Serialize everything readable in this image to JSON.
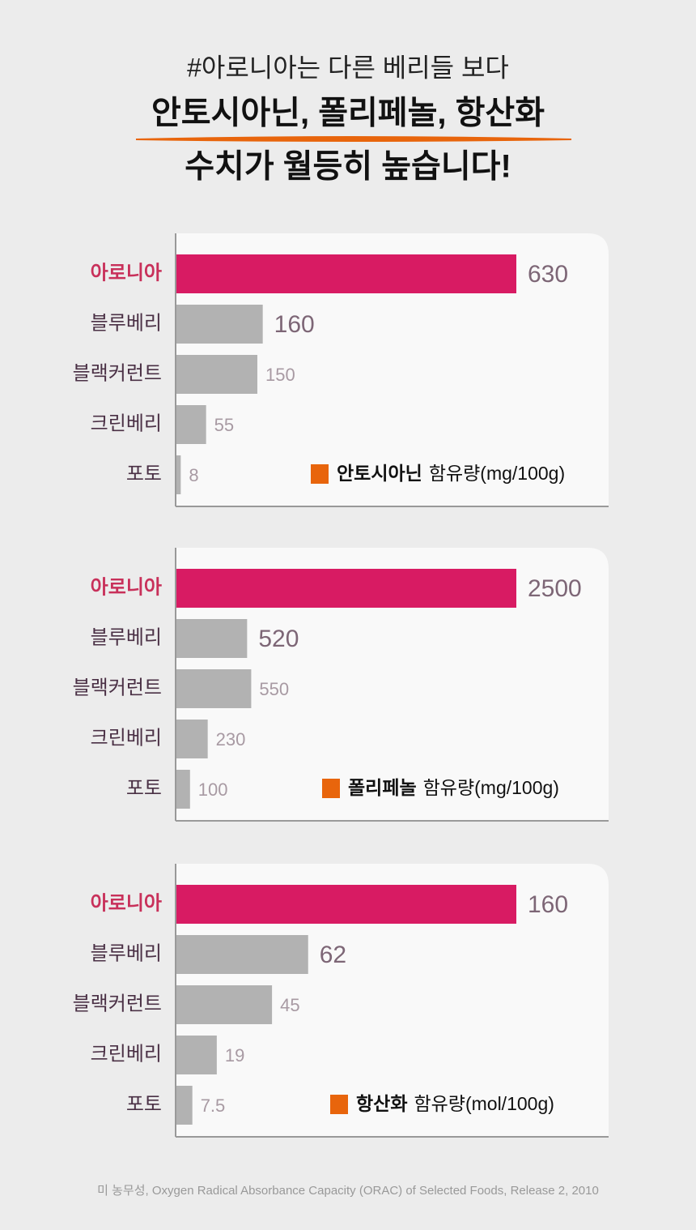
{
  "header": {
    "line1": "#아로니아는 다른 베리들 보다",
    "line2": "안토시아닌, 폴리페놀, 항산화",
    "line3": "수치가 월등히 높습니다!"
  },
  "chart_data": [
    {
      "type": "bar",
      "orientation": "horizontal",
      "categories": [
        "아로니아",
        "블루베리",
        "블랙커런트",
        "크린베리",
        "포토"
      ],
      "bar_colors": [
        "#d81b63",
        "#b2b2b2",
        "#b2b2b2",
        "#b2b2b2",
        "#b2b2b2"
      ],
      "series": [
        {
          "name": "안토시아닌",
          "color": "#e8650c",
          "values": [
            630,
            160,
            150,
            55,
            8
          ]
        }
      ],
      "unit_label": "함유량(mg/100g)"
    },
    {
      "type": "bar",
      "orientation": "horizontal",
      "categories": [
        "아로니아",
        "블루베리",
        "블랙커런트",
        "크린베리",
        "포토"
      ],
      "bar_colors": [
        "#d81b63",
        "#b2b2b2",
        "#b2b2b2",
        "#b2b2b2",
        "#b2b2b2"
      ],
      "series": [
        {
          "name": "폴리페놀",
          "color": "#e8650c",
          "values": [
            2500,
            520,
            550,
            230,
            100
          ]
        }
      ],
      "unit_label": "함유량(mg/100g)"
    },
    {
      "type": "bar",
      "orientation": "horizontal",
      "categories": [
        "아로니아",
        "블루베리",
        "블랙커런트",
        "크린베리",
        "포토"
      ],
      "bar_colors": [
        "#d81b63",
        "#b2b2b2",
        "#b2b2b2",
        "#b2b2b2",
        "#b2b2b2"
      ],
      "series": [
        {
          "name": "항산화",
          "color": "#e8650c",
          "values": [
            160,
            62,
            45,
            19,
            7.5
          ]
        }
      ],
      "unit_label": "함유량(mol/100g)"
    }
  ],
  "footnote": "미 농무성, Oxygen Radical Absorbance Capacity (ORAC) of Selected Foods, Release 2, 2010"
}
